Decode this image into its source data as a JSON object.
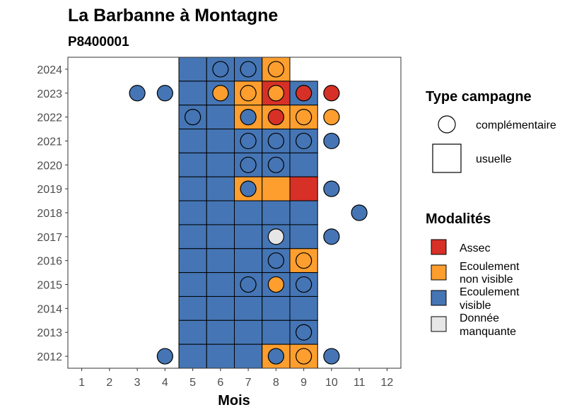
{
  "chart_data": {
    "type": "heatmap",
    "title": "La Barbanne à Montagne",
    "subtitle": "P8400001",
    "xlabel": "Mois",
    "ylabel": "",
    "x_ticks": [
      "1",
      "2",
      "3",
      "4",
      "5",
      "6",
      "7",
      "8",
      "9",
      "10",
      "11",
      "12"
    ],
    "y_ticks": [
      "2012",
      "2013",
      "2014",
      "2015",
      "2016",
      "2017",
      "2018",
      "2019",
      "2020",
      "2021",
      "2022",
      "2023",
      "2024"
    ],
    "xlim": [
      0.5,
      12.5
    ],
    "ylim": [
      2011.5,
      2024.5
    ],
    "grid": false,
    "colors": {
      "Assec": "#d73027",
      "Ecoulement non visible": "#fd9e2e",
      "Ecoulement visible": "#4575b4",
      "Donnée manquante": "#e6e6e6"
    },
    "legend": {
      "placement": "right",
      "shape_title": "Type campagne",
      "shapes": [
        {
          "key": "complementaire",
          "label": "complémentaire",
          "shape": "circle"
        },
        {
          "key": "usuelle",
          "label": "usuelle",
          "shape": "square"
        }
      ],
      "fill_title": "Modalités",
      "fills": [
        {
          "key": "Assec",
          "lines": [
            "Assec"
          ],
          "color": "#d73027"
        },
        {
          "key": "Ecoulement non visible",
          "lines": [
            "Ecoulement",
            "non visible"
          ],
          "color": "#fd9e2e"
        },
        {
          "key": "Ecoulement visible",
          "lines": [
            "Ecoulement",
            "visible"
          ],
          "color": "#4575b4"
        },
        {
          "key": "Donnée manquante",
          "lines": [
            "Donnée",
            "manquante"
          ],
          "color": "#e6e6e6"
        }
      ]
    },
    "usuelle": [
      {
        "year": 2024,
        "month": 5,
        "value": "Ecoulement visible"
      },
      {
        "year": 2024,
        "month": 6,
        "value": "Ecoulement visible"
      },
      {
        "year": 2024,
        "month": 7,
        "value": "Ecoulement visible"
      },
      {
        "year": 2024,
        "month": 8,
        "value": "Ecoulement non visible"
      },
      {
        "year": 2023,
        "month": 5,
        "value": "Ecoulement visible"
      },
      {
        "year": 2023,
        "month": 6,
        "value": "Ecoulement visible"
      },
      {
        "year": 2023,
        "month": 7,
        "value": "Ecoulement non visible"
      },
      {
        "year": 2023,
        "month": 8,
        "value": "Assec"
      },
      {
        "year": 2023,
        "month": 9,
        "value": "Ecoulement visible"
      },
      {
        "year": 2022,
        "month": 5,
        "value": "Ecoulement visible"
      },
      {
        "year": 2022,
        "month": 6,
        "value": "Ecoulement visible"
      },
      {
        "year": 2022,
        "month": 7,
        "value": "Ecoulement non visible"
      },
      {
        "year": 2022,
        "month": 8,
        "value": "Ecoulement non visible"
      },
      {
        "year": 2022,
        "month": 9,
        "value": "Ecoulement non visible"
      },
      {
        "year": 2021,
        "month": 5,
        "value": "Ecoulement visible"
      },
      {
        "year": 2021,
        "month": 6,
        "value": "Ecoulement visible"
      },
      {
        "year": 2021,
        "month": 7,
        "value": "Ecoulement visible"
      },
      {
        "year": 2021,
        "month": 8,
        "value": "Ecoulement visible"
      },
      {
        "year": 2021,
        "month": 9,
        "value": "Ecoulement visible"
      },
      {
        "year": 2020,
        "month": 5,
        "value": "Ecoulement visible"
      },
      {
        "year": 2020,
        "month": 6,
        "value": "Ecoulement visible"
      },
      {
        "year": 2020,
        "month": 7,
        "value": "Ecoulement visible"
      },
      {
        "year": 2020,
        "month": 8,
        "value": "Ecoulement visible"
      },
      {
        "year": 2020,
        "month": 9,
        "value": "Ecoulement visible"
      },
      {
        "year": 2019,
        "month": 5,
        "value": "Ecoulement visible"
      },
      {
        "year": 2019,
        "month": 6,
        "value": "Ecoulement visible"
      },
      {
        "year": 2019,
        "month": 7,
        "value": "Ecoulement non visible"
      },
      {
        "year": 2019,
        "month": 8,
        "value": "Ecoulement non visible"
      },
      {
        "year": 2019,
        "month": 9,
        "value": "Assec"
      },
      {
        "year": 2018,
        "month": 5,
        "value": "Ecoulement visible"
      },
      {
        "year": 2018,
        "month": 6,
        "value": "Ecoulement visible"
      },
      {
        "year": 2018,
        "month": 7,
        "value": "Ecoulement visible"
      },
      {
        "year": 2018,
        "month": 8,
        "value": "Ecoulement visible"
      },
      {
        "year": 2018,
        "month": 9,
        "value": "Ecoulement visible"
      },
      {
        "year": 2017,
        "month": 5,
        "value": "Ecoulement visible"
      },
      {
        "year": 2017,
        "month": 6,
        "value": "Ecoulement visible"
      },
      {
        "year": 2017,
        "month": 7,
        "value": "Ecoulement visible"
      },
      {
        "year": 2017,
        "month": 8,
        "value": "Ecoulement visible"
      },
      {
        "year": 2017,
        "month": 9,
        "value": "Ecoulement visible"
      },
      {
        "year": 2016,
        "month": 5,
        "value": "Ecoulement visible"
      },
      {
        "year": 2016,
        "month": 6,
        "value": "Ecoulement visible"
      },
      {
        "year": 2016,
        "month": 7,
        "value": "Ecoulement visible"
      },
      {
        "year": 2016,
        "month": 8,
        "value": "Ecoulement visible"
      },
      {
        "year": 2016,
        "month": 9,
        "value": "Ecoulement non visible"
      },
      {
        "year": 2015,
        "month": 5,
        "value": "Ecoulement visible"
      },
      {
        "year": 2015,
        "month": 6,
        "value": "Ecoulement visible"
      },
      {
        "year": 2015,
        "month": 7,
        "value": "Ecoulement visible"
      },
      {
        "year": 2015,
        "month": 8,
        "value": "Ecoulement visible"
      },
      {
        "year": 2015,
        "month": 9,
        "value": "Ecoulement visible"
      },
      {
        "year": 2014,
        "month": 5,
        "value": "Ecoulement visible"
      },
      {
        "year": 2014,
        "month": 6,
        "value": "Ecoulement visible"
      },
      {
        "year": 2014,
        "month": 7,
        "value": "Ecoulement visible"
      },
      {
        "year": 2014,
        "month": 8,
        "value": "Ecoulement visible"
      },
      {
        "year": 2014,
        "month": 9,
        "value": "Ecoulement visible"
      },
      {
        "year": 2013,
        "month": 5,
        "value": "Ecoulement visible"
      },
      {
        "year": 2013,
        "month": 6,
        "value": "Ecoulement visible"
      },
      {
        "year": 2013,
        "month": 7,
        "value": "Ecoulement visible"
      },
      {
        "year": 2013,
        "month": 8,
        "value": "Ecoulement visible"
      },
      {
        "year": 2013,
        "month": 9,
        "value": "Ecoulement visible"
      },
      {
        "year": 2012,
        "month": 5,
        "value": "Ecoulement visible"
      },
      {
        "year": 2012,
        "month": 6,
        "value": "Ecoulement visible"
      },
      {
        "year": 2012,
        "month": 7,
        "value": "Ecoulement visible"
      },
      {
        "year": 2012,
        "month": 8,
        "value": "Ecoulement non visible"
      },
      {
        "year": 2012,
        "month": 9,
        "value": "Ecoulement non visible"
      }
    ],
    "complementaire": [
      {
        "year": 2024,
        "month": 6,
        "value": "Ecoulement visible"
      },
      {
        "year": 2024,
        "month": 7,
        "value": "Ecoulement visible"
      },
      {
        "year": 2024,
        "month": 8,
        "value": "Ecoulement non visible"
      },
      {
        "year": 2023,
        "month": 3,
        "value": "Ecoulement visible"
      },
      {
        "year": 2023,
        "month": 4,
        "value": "Ecoulement visible"
      },
      {
        "year": 2023,
        "month": 6,
        "value": "Ecoulement non visible"
      },
      {
        "year": 2023,
        "month": 7,
        "value": "Ecoulement non visible"
      },
      {
        "year": 2023,
        "month": 8,
        "value": "Ecoulement non visible"
      },
      {
        "year": 2023,
        "month": 9,
        "value": "Assec"
      },
      {
        "year": 2023,
        "month": 10,
        "value": "Assec"
      },
      {
        "year": 2022,
        "month": 5,
        "value": "Ecoulement visible"
      },
      {
        "year": 2022,
        "month": 7,
        "value": "Ecoulement visible"
      },
      {
        "year": 2022,
        "month": 8,
        "value": "Assec"
      },
      {
        "year": 2022,
        "month": 9,
        "value": "Ecoulement non visible"
      },
      {
        "year": 2022,
        "month": 10,
        "value": "Ecoulement non visible"
      },
      {
        "year": 2021,
        "month": 7,
        "value": "Ecoulement visible"
      },
      {
        "year": 2021,
        "month": 8,
        "value": "Ecoulement visible"
      },
      {
        "year": 2021,
        "month": 9,
        "value": "Ecoulement visible"
      },
      {
        "year": 2021,
        "month": 10,
        "value": "Ecoulement visible"
      },
      {
        "year": 2020,
        "month": 7,
        "value": "Ecoulement visible"
      },
      {
        "year": 2020,
        "month": 8,
        "value": "Ecoulement visible"
      },
      {
        "year": 2019,
        "month": 7,
        "value": "Ecoulement visible"
      },
      {
        "year": 2019,
        "month": 10,
        "value": "Ecoulement visible"
      },
      {
        "year": 2018,
        "month": 11,
        "value": "Ecoulement visible"
      },
      {
        "year": 2017,
        "month": 8,
        "value": "Donnée manquante"
      },
      {
        "year": 2017,
        "month": 10,
        "value": "Ecoulement visible"
      },
      {
        "year": 2016,
        "month": 8,
        "value": "Ecoulement visible"
      },
      {
        "year": 2016,
        "month": 9,
        "value": "Ecoulement non visible"
      },
      {
        "year": 2015,
        "month": 7,
        "value": "Ecoulement visible"
      },
      {
        "year": 2015,
        "month": 8,
        "value": "Ecoulement non visible"
      },
      {
        "year": 2015,
        "month": 9,
        "value": "Ecoulement visible"
      },
      {
        "year": 2013,
        "month": 9,
        "value": "Ecoulement visible"
      },
      {
        "year": 2012,
        "month": 4,
        "value": "Ecoulement visible"
      },
      {
        "year": 2012,
        "month": 8,
        "value": "Ecoulement visible"
      },
      {
        "year": 2012,
        "month": 9,
        "value": "Ecoulement non visible"
      },
      {
        "year": 2012,
        "month": 10,
        "value": "Ecoulement visible"
      }
    ]
  }
}
